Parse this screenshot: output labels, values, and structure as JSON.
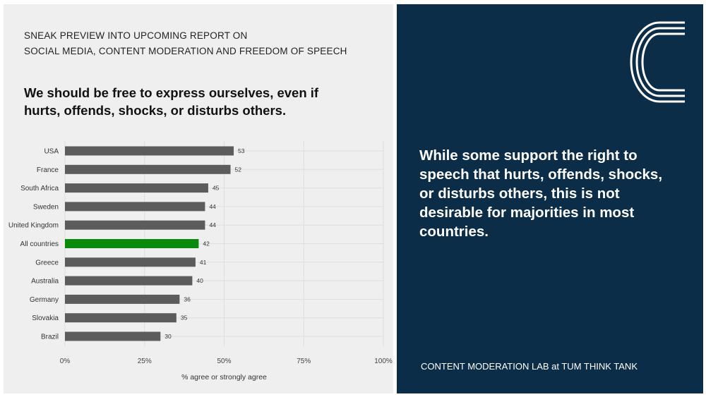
{
  "header": {
    "preview_line1": "SNEAK PREVIEW INTO UPCOMING REPORT ON",
    "preview_line2": "SOCIAL MEDIA, CONTENT MODERATION AND FREEDOM OF SPEECH",
    "question": "We should be free to express ourselves, even if hurts, offends, shocks, or disturbs others."
  },
  "chart_data": {
    "type": "bar",
    "orientation": "horizontal",
    "categories": [
      "USA",
      "France",
      "South Africa",
      "Sweden",
      "United Kingdom",
      "All countries",
      "Greece",
      "Australia",
      "Germany",
      "Slovakia",
      "Brazil"
    ],
    "values": [
      53,
      52,
      45,
      44,
      44,
      42,
      41,
      40,
      36,
      35,
      30
    ],
    "highlight": "All countries",
    "xlabel": "% agree or strongly agree",
    "xticks": [
      "0%",
      "25%",
      "50%",
      "75%",
      "100%"
    ],
    "xlim": [
      0,
      100
    ],
    "grid": true,
    "colors": {
      "bar": "#5c5c5c",
      "highlight": "#0a8a0a",
      "grid": "#dedede"
    }
  },
  "sidebar": {
    "logo_icon": "c-logo-icon",
    "message": "While some support the right to speech that hurts, offends, shocks, or disturbs others, this is not desirable for majorities in most countries.",
    "footer": "CONTENT MODERATION LAB at TUM THINK TANK",
    "colors": {
      "background": "#0b2d48",
      "text": "#ffffff"
    }
  }
}
